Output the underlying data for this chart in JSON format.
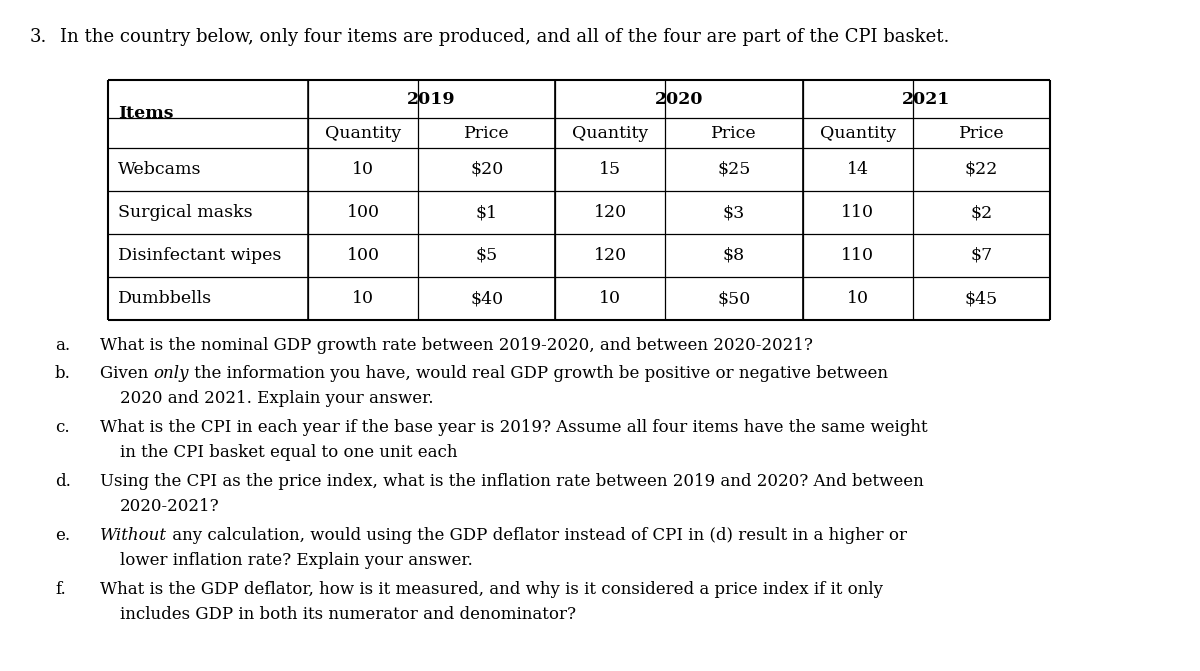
{
  "bg_color": "#ffffff",
  "text_color": "#000000",
  "title_num": "3.",
  "title_text": "In the country below, only four items are produced, and all of the four are part of the CPI basket.",
  "year_labels": [
    "2019",
    "2020",
    "2021"
  ],
  "col_headers": [
    "Quantity",
    "Price",
    "Quantity",
    "Price",
    "Quantity",
    "Price"
  ],
  "items": [
    "Webcams",
    "Surgical masks",
    "Disinfectant wipes",
    "Dumbbells"
  ],
  "table_data": [
    [
      "10",
      "$20",
      "15",
      "$25",
      "14",
      "$22"
    ],
    [
      "100",
      "$1",
      "120",
      "$3",
      "110",
      "$2"
    ],
    [
      "100",
      "$5",
      "120",
      "$8",
      "110",
      "$7"
    ],
    [
      "10",
      "$40",
      "10",
      "$50",
      "10",
      "$45"
    ]
  ],
  "questions": [
    {
      "label": "a.",
      "line1_parts": [
        {
          "text": "What is the nominal GDP growth rate between 2019-2020, and between 2020-2021?",
          "italic": false
        }
      ],
      "line2": null
    },
    {
      "label": "b.",
      "line1_parts": [
        {
          "text": "Given ",
          "italic": false
        },
        {
          "text": "only",
          "italic": true
        },
        {
          "text": " the information you have, would real GDP growth be positive or negative between",
          "italic": false
        }
      ],
      "line2": "2020 and 2021. Explain your answer."
    },
    {
      "label": "c.",
      "line1_parts": [
        {
          "text": "What is the CPI in each year if the base year is 2019? Assume all four items have the same weight",
          "italic": false
        }
      ],
      "line2": "in the CPI basket equal to one unit each"
    },
    {
      "label": "d.",
      "line1_parts": [
        {
          "text": "Using the CPI as the price index, what is the inflation rate between 2019 and 2020? And between",
          "italic": false
        }
      ],
      "line2": "2020-2021?"
    },
    {
      "label": "e.",
      "line1_parts": [
        {
          "text": "Without",
          "italic": true
        },
        {
          "text": " any calculation, would using the GDP deflator instead of CPI in (d) result in a higher or",
          "italic": false
        }
      ],
      "line2": "lower inflation rate? Explain your answer."
    },
    {
      "label": "f.",
      "line1_parts": [
        {
          "text": "What is the GDP deflator, how is it measured, and why is it considered a price index if it only",
          "italic": false
        }
      ],
      "line2": "includes GDP in both its numerator and denominator?"
    }
  ]
}
